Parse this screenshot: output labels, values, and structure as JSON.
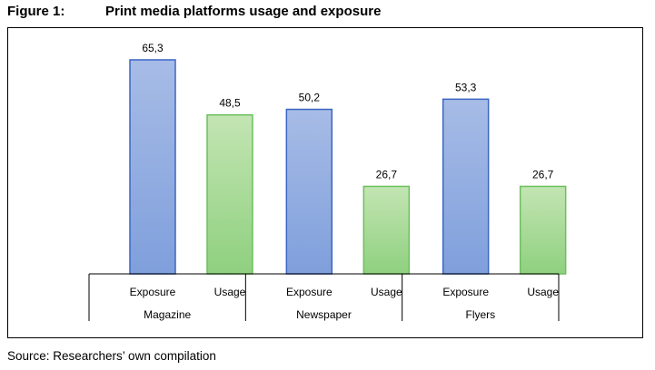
{
  "figure": {
    "label": "Figure 1:",
    "title": "Print media platforms usage and exposure"
  },
  "source": "Source: Researchers’ own compilation",
  "colors": {
    "exposure_top": "#a7bce6",
    "exposure_bottom": "#7f9fdc",
    "exposure_border": "#3c66c4",
    "usage_top": "#c3e5b3",
    "usage_bottom": "#8fd07f",
    "usage_border": "#6cbf5f",
    "axis": "#000000"
  },
  "chart_data": {
    "type": "bar",
    "title": "",
    "groups": [
      "Magazine",
      "Newspaper",
      "Flyers"
    ],
    "categories": [
      "Exposure",
      "Usage"
    ],
    "data_label_format": "comma-decimal",
    "bars": [
      {
        "group": "Magazine",
        "category": "Exposure",
        "value": 65.3,
        "label": "65,3"
      },
      {
        "group": "Magazine",
        "category": "Usage",
        "value": 48.5,
        "label": "48,5"
      },
      {
        "group": "Newspaper",
        "category": "Exposure",
        "value": 50.2,
        "label": "50,2"
      },
      {
        "group": "Newspaper",
        "category": "Usage",
        "value": 26.7,
        "label": "26,7"
      },
      {
        "group": "Flyers",
        "category": "Exposure",
        "value": 53.3,
        "label": "53,3"
      },
      {
        "group": "Flyers",
        "category": "Usage",
        "value": 26.7,
        "label": "26,7"
      }
    ],
    "ylim": [
      0,
      70
    ],
    "y_axis_visible": false,
    "grid": false,
    "legend": "none"
  }
}
